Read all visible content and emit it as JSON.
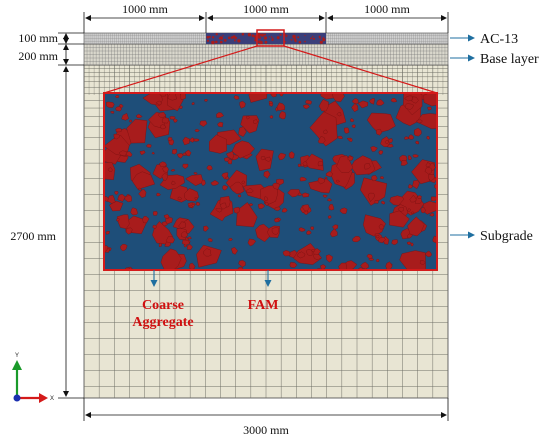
{
  "dimensions": {
    "top_left": "1000 mm",
    "top_middle": "1000 mm",
    "top_right": "1000 mm",
    "left_surface": "100 mm",
    "left_base": "200 mm",
    "left_subgrade": "2700 mm",
    "bottom_total": "3000 mm"
  },
  "layers": {
    "surface": "AC-13",
    "base": "Base layer",
    "subgrade": "Subgrade"
  },
  "zoom_labels": {
    "coarse_line1": "Coarse",
    "coarse_line2": "Aggregate",
    "fam": "FAM"
  },
  "axes": {
    "y": "Y",
    "x": "X"
  },
  "colors": {
    "mesh_fill": "#e8e5d3",
    "mesh_line": "#6f6f66",
    "aggregate": "#a81c1c",
    "fam": "#1e4e79",
    "highlight": "#d41a1a",
    "arrow": "#1f6fa0"
  }
}
